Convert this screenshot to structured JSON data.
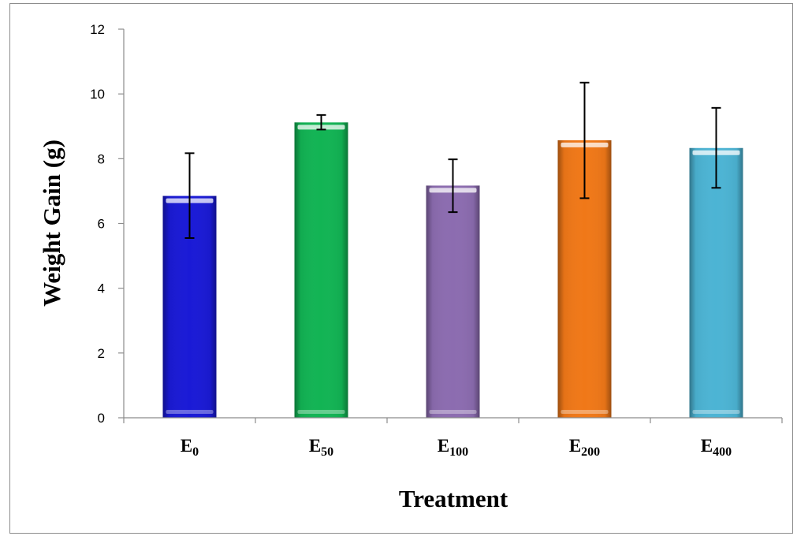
{
  "chart_data": {
    "type": "bar",
    "title": "",
    "xlabel": "Treatment",
    "ylabel": "Weight Gain (g)",
    "ylim": [
      0,
      12
    ],
    "yticks": [
      0,
      2,
      4,
      6,
      8,
      10,
      12
    ],
    "grid": false,
    "legend": "none",
    "categories": [
      {
        "base": "E",
        "sub": "0"
      },
      {
        "base": "E",
        "sub": "50"
      },
      {
        "base": "E",
        "sub": "100"
      },
      {
        "base": "E",
        "sub": "200"
      },
      {
        "base": "E",
        "sub": "400"
      }
    ],
    "values": [
      6.85,
      9.12,
      7.17,
      8.57,
      8.33
    ],
    "error_low": [
      5.55,
      8.9,
      6.35,
      6.78,
      7.1
    ],
    "error_high": [
      8.17,
      9.35,
      7.98,
      10.35,
      9.57
    ],
    "colors": [
      "#1a1ad6",
      "#12b454",
      "#8c6cb0",
      "#f07818",
      "#4cb4d4"
    ]
  }
}
